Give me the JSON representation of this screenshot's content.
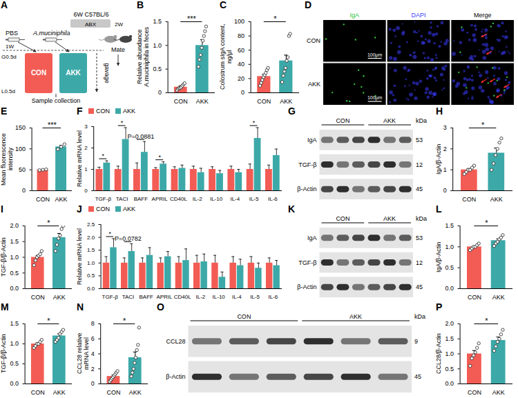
{
  "chart_data": [
    {
      "panel": "B",
      "type": "bar",
      "ylabel": "Relative abundance A.muciniphila in feces",
      "categories": [
        "CON",
        "AKK"
      ],
      "values": [
        0.12,
        1.0
      ],
      "errors": [
        0.03,
        0.12
      ],
      "points": [
        [
          0.05,
          0.08,
          0.1,
          0.1,
          0.12,
          0.15,
          0.18,
          0.2
        ],
        [
          0.55,
          0.7,
          0.8,
          0.95,
          1.1,
          1.2,
          1.3,
          1.4
        ]
      ],
      "colors": [
        "#f25c54",
        "#3ca9a8"
      ],
      "significance": "***",
      "ylim": [
        0,
        1.5
      ],
      "yticks": [
        0,
        0.5,
        {
          "value": 1,
          "label": "1.0"
        },
        1.5
      ]
    },
    {
      "panel": "C",
      "type": "bar",
      "ylabel": "Colostrum sIgA content, ng/μl",
      "categories": [
        "CON",
        "AKK"
      ],
      "values": [
        23,
        45
      ],
      "errors": [
        3,
        8
      ],
      "points": [
        [
          10,
          14,
          18,
          22,
          25,
          28,
          32,
          35
        ],
        [
          15,
          24,
          30,
          35,
          45,
          50,
          80,
          83
        ]
      ],
      "colors": [
        "#f25c54",
        "#3ca9a8"
      ],
      "significance": "*",
      "ylim": [
        0,
        100
      ],
      "yticks": [
        0,
        20,
        40,
        60,
        80,
        100
      ]
    },
    {
      "panel": "E",
      "type": "bar",
      "ylabel": "Mean fluorescence intensity",
      "categories": [
        "CON",
        "AKK"
      ],
      "values": [
        50,
        105
      ],
      "errors": [
        0.6,
        3.5
      ],
      "points": [
        [
          49,
          50,
          51
        ],
        [
          99,
          105,
          111
        ]
      ],
      "colors": [
        "#f25c54",
        "#3ca9a8"
      ],
      "significance": "***",
      "ylim": [
        0,
        150
      ],
      "yticks": [
        0,
        50,
        100,
        150
      ]
    },
    {
      "panel": "F",
      "type": "grouped_bar",
      "ylabel": "Relative mRNA level",
      "categories": [
        "TGF-β",
        "TACI",
        "BAFF",
        "APRIL",
        "CD40L",
        "IL-2",
        "IL-10",
        "IL-4",
        "IL-5",
        "IL-6"
      ],
      "series": [
        {
          "name": "CON",
          "color": "#f25c54",
          "values": [
            1,
            1,
            1,
            1,
            1,
            1,
            1,
            1,
            1,
            1
          ],
          "errors": [
            0.1,
            0.15,
            0.3,
            0.08,
            0.12,
            0.15,
            0.12,
            0.15,
            0.25,
            0.2
          ]
        },
        {
          "name": "AKK",
          "color": "#3ca9a8",
          "values": [
            1.3,
            2.4,
            1.8,
            1.25,
            1.05,
            0.85,
            0.8,
            0.85,
            2.45,
            1.65
          ],
          "errors": [
            0.1,
            0.55,
            0.5,
            0.1,
            0.15,
            0.2,
            0.15,
            0.15,
            0.5,
            0.3
          ]
        }
      ],
      "annotations": [
        {
          "category": "TGF-β",
          "text": "*"
        },
        {
          "category": "TACI",
          "text": "*"
        },
        {
          "category": "BAFF",
          "text": "P=0.0881"
        },
        {
          "category": "APRIL",
          "text": "*"
        },
        {
          "category": "IL-5",
          "text": "*"
        }
      ],
      "legend": "top-left",
      "ylim": [
        0,
        3
      ],
      "yticks": [
        0,
        1,
        2,
        3
      ]
    },
    {
      "panel": "H",
      "type": "bar",
      "ylabel": "IgA/β-Actin",
      "categories": [
        "CON",
        "AKK"
      ],
      "values": [
        1.0,
        1.8
      ],
      "errors": [
        0.06,
        0.24
      ],
      "points": [
        [
          0.8,
          0.9,
          1.0,
          1.0,
          1.1,
          1.2
        ],
        [
          1.0,
          1.3,
          1.7,
          2.0,
          2.3,
          2.5
        ]
      ],
      "colors": [
        "#f25c54",
        "#3ca9a8"
      ],
      "significance": "*",
      "ylim": [
        0,
        3
      ],
      "yticks": [
        0,
        1,
        2,
        3
      ]
    },
    {
      "panel": "I",
      "type": "bar",
      "ylabel": "TGF-β/β-Actin",
      "categories": [
        "CON",
        "AKK"
      ],
      "values": [
        1.0,
        1.63
      ],
      "errors": [
        0.06,
        0.13
      ],
      "points": [
        [
          0.75,
          0.9,
          1.0,
          1.05,
          1.1,
          1.2
        ],
        [
          1.2,
          1.4,
          1.6,
          1.7,
          1.9,
          2.0
        ]
      ],
      "colors": [
        "#f25c54",
        "#3ca9a8"
      ],
      "significance": "*",
      "ylim": [
        0,
        2
      ],
      "yticks": [
        {
          "value": 0,
          "label": "0.0"
        },
        0.5,
        {
          "value": 1,
          "label": "1.0"
        },
        1.5,
        {
          "value": 2,
          "label": "2.0"
        }
      ]
    },
    {
      "panel": "J",
      "type": "grouped_bar",
      "ylabel": "Relative mRNA level",
      "categories": [
        "TGF-β",
        "TACI",
        "BAFF",
        "APRIL",
        "CD40L",
        "IL-2",
        "IL-10",
        "IL-4",
        "IL-5",
        "IL-6"
      ],
      "series": [
        {
          "name": "CON",
          "color": "#f25c54",
          "values": [
            1,
            1,
            1,
            1,
            1,
            1,
            1,
            1,
            1,
            1
          ],
          "errors": [
            0.25,
            0.2,
            0.2,
            0.2,
            0.25,
            0.3,
            0.3,
            0.25,
            0.25,
            0.2
          ]
        },
        {
          "name": "AKK",
          "color": "#3ca9a8",
          "values": [
            1.6,
            1.45,
            1.3,
            1.25,
            1.1,
            1.05,
            0.45,
            0.9,
            0.8,
            0.9
          ],
          "errors": [
            0.35,
            0.3,
            0.3,
            0.2,
            0.45,
            0.3,
            0.2,
            0.25,
            0.2,
            0.2
          ]
        }
      ],
      "annotations": [
        {
          "category": "TGF-β",
          "text": "*"
        },
        {
          "category": "TACI",
          "text": "P=0.0782"
        }
      ],
      "legend": "top-left",
      "ylim": [
        0,
        2.5
      ],
      "yticks": [
        {
          "value": 0,
          "label": "0.0"
        },
        0.5,
        {
          "value": 1,
          "label": "1.0"
        },
        1.5,
        {
          "value": 2,
          "label": "2.0"
        },
        2.5
      ]
    },
    {
      "panel": "L",
      "type": "bar",
      "ylabel": "IgA/β-Actin",
      "categories": [
        "CON",
        "AKK"
      ],
      "values": [
        1.0,
        1.15
      ],
      "errors": [
        0.02,
        0.04
      ],
      "points": [
        [
          0.92,
          0.96,
          1.0,
          1.0,
          1.04,
          1.08
        ],
        [
          1.02,
          1.08,
          1.12,
          1.18,
          1.22,
          1.28
        ]
      ],
      "colors": [
        "#f25c54",
        "#3ca9a8"
      ],
      "significance": "*",
      "ylim": [
        0,
        1.5
      ],
      "yticks": [
        {
          "value": 0,
          "label": "0.0"
        },
        0.5,
        {
          "value": 1,
          "label": "1.0"
        },
        1.5
      ]
    },
    {
      "panel": "M",
      "type": "bar",
      "ylabel": "TGF-β/β-Actin",
      "categories": [
        "CON",
        "AKK"
      ],
      "values": [
        1.0,
        1.2
      ],
      "errors": [
        0.03,
        0.05
      ],
      "points": [
        [
          0.9,
          0.95,
          1.0,
          1.0,
          1.05,
          1.1
        ],
        [
          1.05,
          1.1,
          1.15,
          1.25,
          1.3,
          1.35
        ]
      ],
      "colors": [
        "#f25c54",
        "#3ca9a8"
      ],
      "significance": "*",
      "ylim": [
        0,
        1.5
      ],
      "yticks": [
        {
          "value": 0,
          "label": "0.0"
        },
        0.5,
        {
          "value": 1,
          "label": "1.0"
        },
        1.5
      ]
    },
    {
      "panel": "N",
      "type": "bar",
      "ylabel": "CCL28 relative mRNA level",
      "categories": [
        "CON",
        "AKK"
      ],
      "values": [
        1.0,
        3.5
      ],
      "errors": [
        0.17,
        0.75
      ],
      "points": [
        [
          0.3,
          0.5,
          0.7,
          0.9,
          1.1,
          1.3,
          1.5,
          1.7
        ],
        [
          1.0,
          1.5,
          2.0,
          2.8,
          3.5,
          4.5,
          5.2,
          7.5
        ]
      ],
      "colors": [
        "#f25c54",
        "#3ca9a8"
      ],
      "significance": "*",
      "ylim": [
        0,
        8
      ],
      "yticks": [
        0,
        2,
        4,
        6,
        8
      ]
    },
    {
      "panel": "P",
      "type": "bar",
      "ylabel": "CCL28/β-Actin",
      "categories": [
        "CON",
        "AKK"
      ],
      "values": [
        1.0,
        1.45
      ],
      "errors": [
        0.11,
        0.11
      ],
      "points": [
        [
          0.6,
          0.85,
          0.95,
          1.05,
          1.2,
          1.35
        ],
        [
          1.1,
          1.25,
          1.4,
          1.5,
          1.65,
          1.8
        ]
      ],
      "colors": [
        "#f25c54",
        "#3ca9a8"
      ],
      "significance": "*",
      "ylim": [
        0,
        2
      ],
      "yticks": [
        {
          "value": 0,
          "label": "0.0"
        },
        0.5,
        {
          "value": 1,
          "label": "1.0"
        },
        1.5,
        {
          "value": 2,
          "label": "2.0"
        }
      ]
    }
  ],
  "figures": [
    {
      "panel": "A",
      "type": "diagram",
      "top_label": "6W C57BL/6",
      "pretreatment": "ABX",
      "pretreatment_duration": "2W",
      "groups": [
        {
          "name": "CON",
          "treatment": "PBS",
          "color": "#f25c54"
        },
        {
          "name": "AKK",
          "treatment": "A.muciniphila",
          "color": "#3ca9a8"
        }
      ],
      "pre_mating": "1W",
      "mate": "Mate",
      "start": "G0.5d",
      "end": "L0.5d",
      "gavage": "gavage",
      "collection": "Sample collection"
    },
    {
      "panel": "D",
      "type": "image",
      "columns": [
        {
          "label": "IgA",
          "color": "#2fbf3a"
        },
        {
          "label": "DAPI",
          "color": "#3b3bff"
        },
        {
          "label": "Merge",
          "color": "#000000"
        }
      ],
      "rows": [
        "CON",
        "AKK"
      ],
      "scale_bar": "100μm"
    },
    {
      "panel": "G",
      "type": "blot",
      "groups": [
        {
          "name": "CON",
          "lanes": 3
        },
        {
          "name": "AKK",
          "lanes": 3
        }
      ],
      "rows": [
        {
          "label": "IgA",
          "kda": 53
        },
        {
          "label": "TGF-β",
          "kda": 12
        },
        {
          "label": "β-Actin",
          "kda": 45
        }
      ],
      "unit": "kDa"
    },
    {
      "panel": "K",
      "type": "blot",
      "groups": [
        {
          "name": "CON",
          "lanes": 3
        },
        {
          "name": "AKK",
          "lanes": 3
        }
      ],
      "rows": [
        {
          "label": "IgA",
          "kda": 53
        },
        {
          "label": "TGF-β",
          "kda": 12
        },
        {
          "label": "β-Actin",
          "kda": 45
        }
      ],
      "unit": "kDa"
    },
    {
      "panel": "O",
      "type": "blot",
      "groups": [
        {
          "name": "CON",
          "lanes": 3
        },
        {
          "name": "AKK",
          "lanes": 3
        }
      ],
      "rows": [
        {
          "label": "CCL28",
          "kda": 9
        },
        {
          "label": "β-Actin",
          "kda": 45
        }
      ],
      "unit": "kDa"
    }
  ]
}
